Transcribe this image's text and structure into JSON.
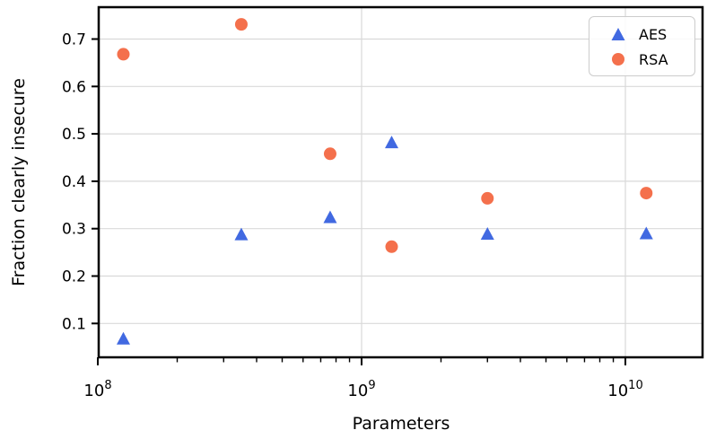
{
  "figure": {
    "background": "#ffffff",
    "spine_color": "#000000",
    "grid_color": "#d9d9d9",
    "text_color": "#000000"
  },
  "chart_data": {
    "type": "scatter",
    "title": "",
    "xlabel": "Parameters",
    "ylabel": "Fraction clearly insecure",
    "xscale": "log",
    "grid": true,
    "legend_position": "upper right",
    "xlim": [
      99000000,
      19600000000
    ],
    "ylim": [
      0.028,
      0.767
    ],
    "x": [
      125000000,
      350000000,
      760000000,
      1300000000,
      3000000000,
      12000000000
    ],
    "series": [
      {
        "name": "AES",
        "marker": "triangle",
        "color": "#4169E1",
        "values": [
          0.067,
          0.287,
          0.323,
          0.481,
          0.288,
          0.289
        ]
      },
      {
        "name": "RSA",
        "marker": "circle",
        "color": "#F4704C",
        "values": [
          0.668,
          0.731,
          0.458,
          0.262,
          0.364,
          0.375
        ]
      }
    ],
    "yticks": [
      "0.1",
      "0.2",
      "0.3",
      "0.4",
      "0.5",
      "0.6",
      "0.7"
    ],
    "xticks": [
      {
        "base": "10",
        "exp": "8",
        "value": 100000000
      },
      {
        "base": "10",
        "exp": "9",
        "value": 1000000000
      },
      {
        "base": "10",
        "exp": "10",
        "value": 10000000000
      }
    ]
  },
  "legend": {
    "entries": [
      {
        "label": "AES"
      },
      {
        "label": "RSA"
      }
    ]
  }
}
